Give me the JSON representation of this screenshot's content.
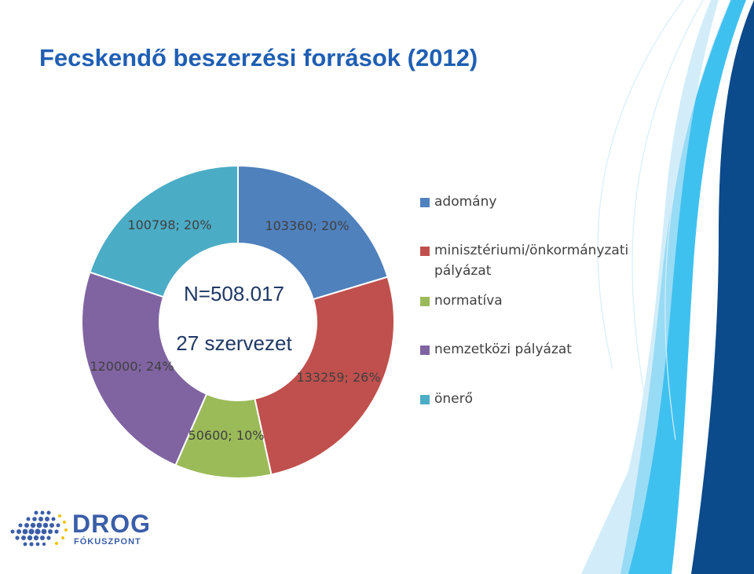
{
  "title": "Fecskendő beszerzési források (2012)",
  "chart_data": {
    "type": "pie",
    "variant": "donut",
    "start_angle_deg": 0,
    "direction": "clockwise",
    "center_texts": [
      "N=508.017",
      "27 szervezet"
    ],
    "slices": [
      {
        "name": "adomány",
        "value": 103360,
        "percent": 20,
        "label": "103360; 20%",
        "color": "#4f81bd"
      },
      {
        "name": "minisztériumi/önkormányzati pályázat",
        "value": 133259,
        "percent": 26,
        "label": "133259; 26%",
        "color": "#c0504d"
      },
      {
        "name": "normatíva",
        "value": 50600,
        "percent": 10,
        "label": "50600; 10%",
        "color": "#9bbb59"
      },
      {
        "name": "nemzetközi pályázat",
        "value": 120000,
        "percent": 24,
        "label": "120000; 24%",
        "color": "#8064a2"
      },
      {
        "name": "önerő",
        "value": 100798,
        "percent": 20,
        "label": "100798; 20%",
        "color": "#4bacc6"
      }
    ],
    "legend": {
      "placement": "right",
      "items": [
        {
          "label": "adomány",
          "color": "#4f81bd"
        },
        {
          "label": "minisztériumi/önkormányzati pályázat",
          "color": "#c0504d"
        },
        {
          "label": "normatíva",
          "color": "#9bbb59"
        },
        {
          "label": "nemzetközi pályázat",
          "color": "#8064a2"
        },
        {
          "label": "önerő",
          "color": "#4bacc6"
        }
      ]
    }
  },
  "logo": {
    "name": "DROG",
    "subtitle": "FÓKUSZPONT",
    "icon": "dot-grid-logo-icon",
    "color": "#3a5ea8"
  },
  "decoration": {
    "icon": "swoosh-stripes-icon",
    "colors": [
      "#0b4a8b",
      "#3fc1f0",
      "#bfe6f7"
    ]
  }
}
